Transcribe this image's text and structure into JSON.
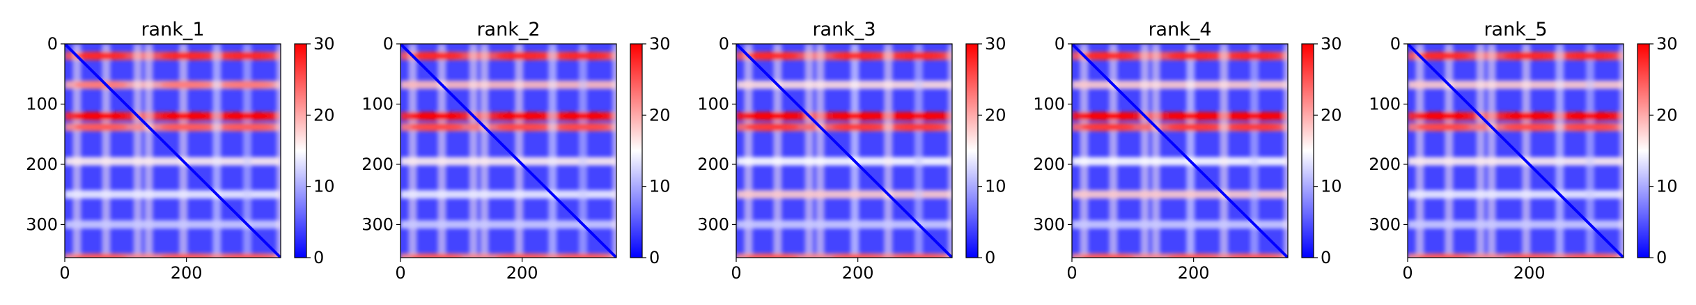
{
  "chart_data": [
    {
      "type": "heatmap",
      "title": "rank_1",
      "xlim": [
        0,
        355
      ],
      "ylim": [
        355,
        0
      ],
      "xticks": [
        0,
        200
      ],
      "yticks": [
        0,
        100,
        200,
        300
      ],
      "colorbar": {
        "min": 0,
        "max": 30,
        "ticks": [
          0,
          10,
          20,
          30
        ],
        "colormap": "bwr"
      },
      "hot_rows": [
        {
          "pos": 20,
          "value": 25
        },
        {
          "pos": 68,
          "value": 20
        },
        {
          "pos": 120,
          "value": 28
        },
        {
          "pos": 138,
          "value": 22
        },
        {
          "pos": 195,
          "value": 16
        },
        {
          "pos": 250,
          "value": 14
        },
        {
          "pos": 300,
          "value": 12
        },
        {
          "pos": 355,
          "value": 22
        }
      ],
      "diagonal_value": 0,
      "background_value": 4
    },
    {
      "type": "heatmap",
      "title": "rank_2",
      "xlim": [
        0,
        355
      ],
      "ylim": [
        355,
        0
      ],
      "xticks": [
        0,
        200
      ],
      "yticks": [
        0,
        100,
        200,
        300
      ],
      "colorbar": {
        "min": 0,
        "max": 30,
        "ticks": [
          0,
          10,
          20,
          30
        ],
        "colormap": "bwr"
      },
      "hot_rows": [
        {
          "pos": 20,
          "value": 25
        },
        {
          "pos": 68,
          "value": 19
        },
        {
          "pos": 120,
          "value": 28
        },
        {
          "pos": 138,
          "value": 23
        },
        {
          "pos": 195,
          "value": 16
        },
        {
          "pos": 250,
          "value": 14
        },
        {
          "pos": 300,
          "value": 12
        },
        {
          "pos": 355,
          "value": 22
        }
      ],
      "diagonal_value": 0,
      "background_value": 4
    },
    {
      "type": "heatmap",
      "title": "rank_3",
      "xlim": [
        0,
        355
      ],
      "ylim": [
        355,
        0
      ],
      "xticks": [
        0,
        200
      ],
      "yticks": [
        0,
        100,
        200,
        300
      ],
      "colorbar": {
        "min": 0,
        "max": 30,
        "ticks": [
          0,
          10,
          20,
          30
        ],
        "colormap": "bwr"
      },
      "hot_rows": [
        {
          "pos": 20,
          "value": 25
        },
        {
          "pos": 68,
          "value": 17
        },
        {
          "pos": 120,
          "value": 29
        },
        {
          "pos": 138,
          "value": 24
        },
        {
          "pos": 195,
          "value": 15
        },
        {
          "pos": 250,
          "value": 18
        },
        {
          "pos": 300,
          "value": 12
        },
        {
          "pos": 355,
          "value": 22
        }
      ],
      "diagonal_value": 0,
      "background_value": 4
    },
    {
      "type": "heatmap",
      "title": "rank_4",
      "xlim": [
        0,
        355
      ],
      "ylim": [
        355,
        0
      ],
      "xticks": [
        0,
        200
      ],
      "yticks": [
        0,
        100,
        200,
        300
      ],
      "colorbar": {
        "min": 0,
        "max": 30,
        "ticks": [
          0,
          10,
          20,
          30
        ],
        "colormap": "bwr"
      },
      "hot_rows": [
        {
          "pos": 20,
          "value": 25
        },
        {
          "pos": 68,
          "value": 18
        },
        {
          "pos": 120,
          "value": 29
        },
        {
          "pos": 138,
          "value": 24
        },
        {
          "pos": 195,
          "value": 15
        },
        {
          "pos": 250,
          "value": 18
        },
        {
          "pos": 300,
          "value": 12
        },
        {
          "pos": 355,
          "value": 22
        }
      ],
      "diagonal_value": 0,
      "background_value": 4
    },
    {
      "type": "heatmap",
      "title": "rank_5",
      "xlim": [
        0,
        355
      ],
      "ylim": [
        355,
        0
      ],
      "xticks": [
        0,
        200
      ],
      "yticks": [
        0,
        100,
        200,
        300
      ],
      "colorbar": {
        "min": 0,
        "max": 30,
        "ticks": [
          0,
          10,
          20,
          30
        ],
        "colormap": "bwr"
      },
      "hot_rows": [
        {
          "pos": 20,
          "value": 25
        },
        {
          "pos": 68,
          "value": 18
        },
        {
          "pos": 120,
          "value": 28
        },
        {
          "pos": 138,
          "value": 23
        },
        {
          "pos": 195,
          "value": 16
        },
        {
          "pos": 250,
          "value": 14
        },
        {
          "pos": 300,
          "value": 12
        },
        {
          "pos": 355,
          "value": 22
        }
      ],
      "diagonal_value": 0,
      "background_value": 4
    }
  ],
  "colors": {
    "low": "#0000ff",
    "mid": "#ffffff",
    "high": "#ff0000",
    "axis": "#000000"
  }
}
